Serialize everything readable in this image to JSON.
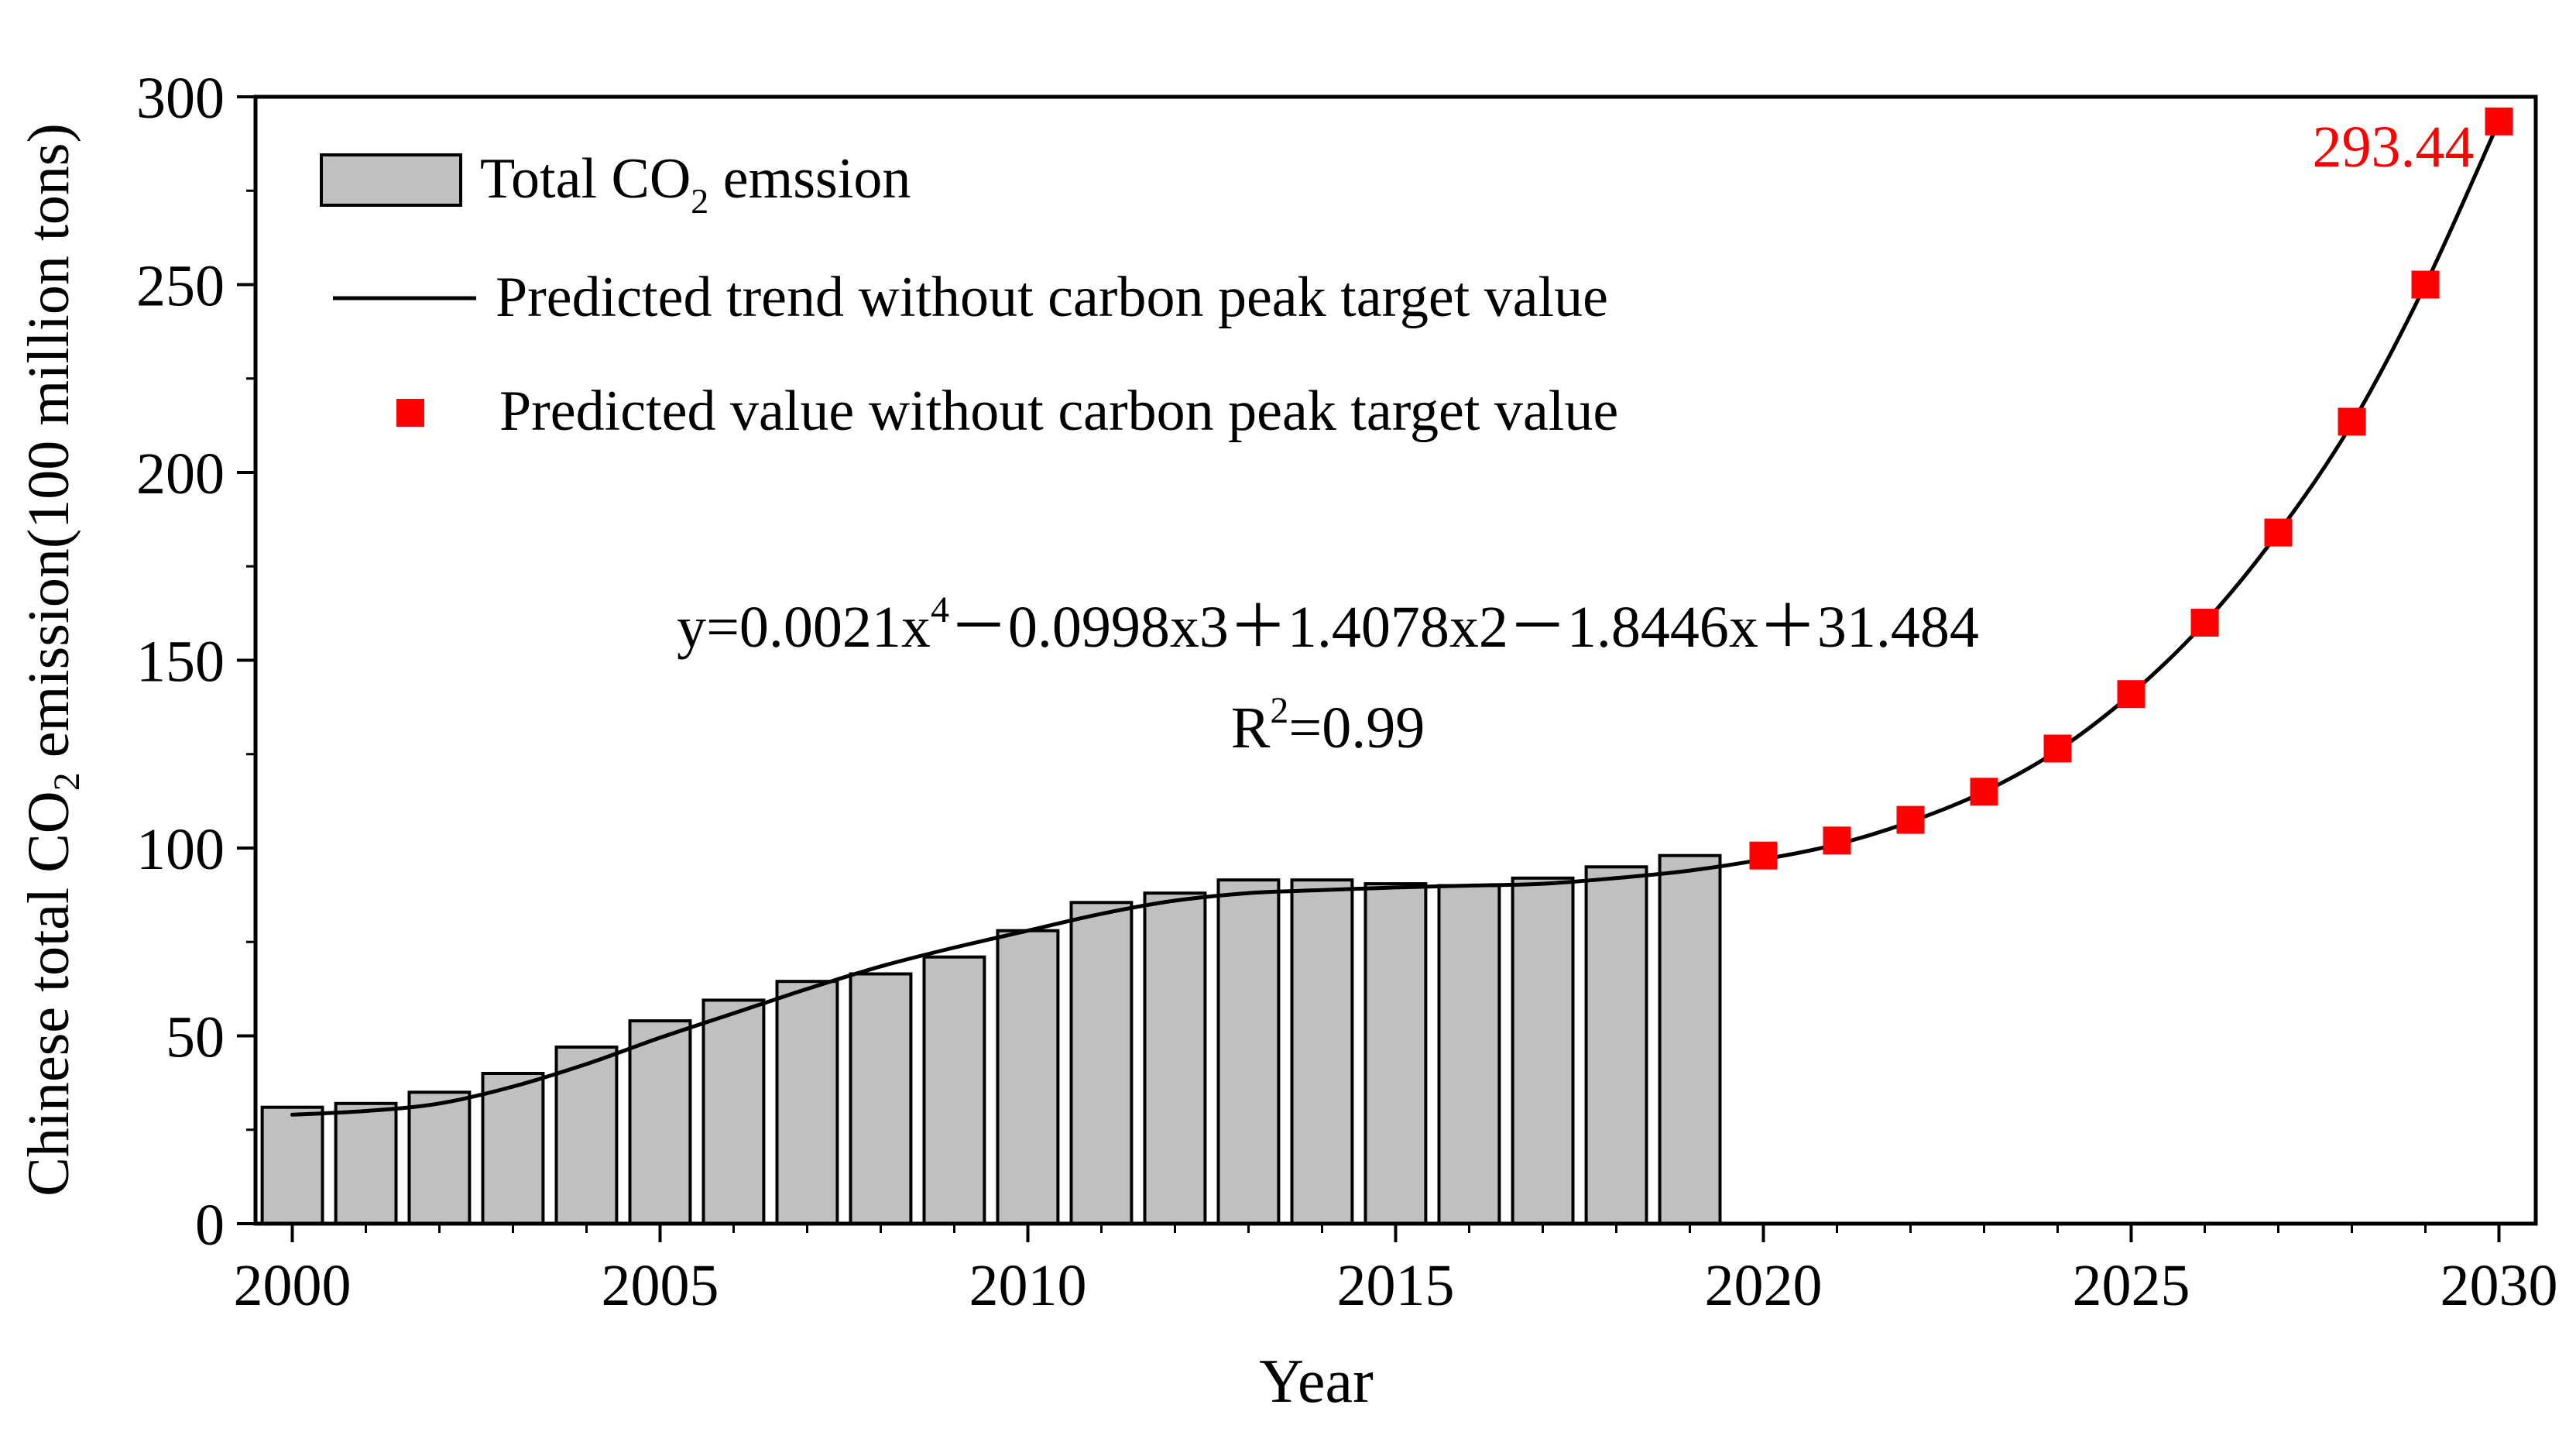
{
  "chart_data": {
    "type": "bar+line+scatter",
    "title": "",
    "xlabel": "Year",
    "ylabel_parts": [
      "Chinese total CO",
      "2",
      " emission(100 million tons)"
    ],
    "xlim": [
      1999.5,
      2030.5
    ],
    "ylim": [
      0,
      300
    ],
    "xticks": [
      2000,
      2005,
      2010,
      2015,
      2020,
      2025,
      2030
    ],
    "yticks": [
      0,
      50,
      100,
      150,
      200,
      250,
      300
    ],
    "grid": false,
    "legend_position": "top-left",
    "legend": {
      "bars_parts": [
        "Total CO",
        "2",
        " emssion"
      ],
      "trend": "Predicted trend without carbon peak target value",
      "predicted": "Predicted value without carbon peak target value"
    },
    "bars": {
      "name": "Total CO2 emssion",
      "color": "#c0c0c0",
      "years": [
        2000,
        2001,
        2002,
        2003,
        2004,
        2005,
        2006,
        2007,
        2008,
        2009,
        2010,
        2011,
        2012,
        2013,
        2014,
        2015,
        2016,
        2017,
        2018,
        2019
      ],
      "values": [
        31,
        32,
        35,
        40,
        47,
        54,
        59.5,
        64.5,
        66.5,
        71,
        78,
        85.5,
        88,
        91.5,
        91.5,
        90.5,
        90,
        92,
        95,
        98
      ]
    },
    "trend": {
      "name": "Predicted trend without carbon peak target value",
      "color": "#000000",
      "x": [
        2000,
        2001,
        2002,
        2003,
        2004,
        2005,
        2006,
        2007,
        2008,
        2009,
        2010,
        2011,
        2012,
        2013,
        2014,
        2015,
        2016,
        2017,
        2018,
        2019,
        2020,
        2021,
        2022,
        2023,
        2024,
        2025,
        2026,
        2027,
        2028,
        2029,
        2030
      ],
      "y": [
        29,
        30,
        32,
        36.5,
        42.5,
        49.5,
        56,
        62.5,
        68.5,
        73.5,
        78,
        82.5,
        86,
        88,
        88.8,
        89.5,
        90,
        90.5,
        92,
        94,
        97,
        101,
        107,
        115,
        126,
        141,
        160,
        184,
        213,
        250,
        293.44
      ]
    },
    "predicted": {
      "name": "Predicted value without carbon peak target value",
      "color": "#ff0000",
      "years": [
        2020,
        2021,
        2022,
        2023,
        2024,
        2025,
        2026,
        2027,
        2028,
        2029,
        2030
      ],
      "values": [
        98,
        102,
        107.5,
        115,
        126.5,
        141,
        160,
        184,
        213.5,
        250,
        293.44
      ]
    },
    "annotations": {
      "peak_label": "293.44",
      "peak_label_color": "#ff0000",
      "equation_parts": [
        "y=0.0021x",
        "4",
        "－0.0998x3＋1.4078x2－1.8446x＋31.484"
      ],
      "r2_parts": [
        "R",
        "2",
        "=0.99"
      ]
    }
  }
}
